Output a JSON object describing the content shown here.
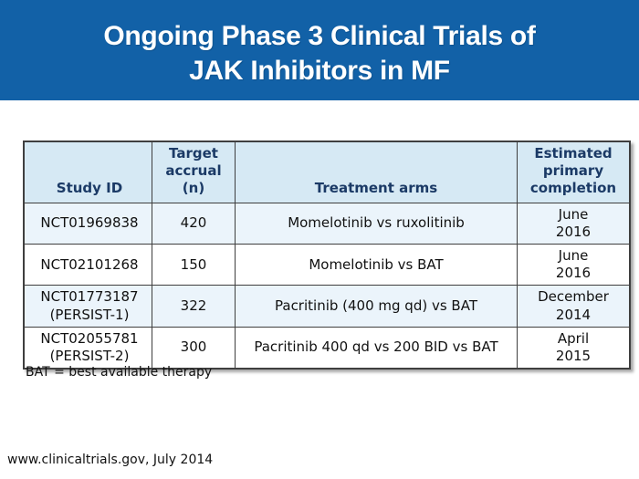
{
  "title": {
    "line1": "Ongoing Phase 3 Clinical Trials of",
    "line2": "JAK Inhibitors in MF"
  },
  "table": {
    "columns": [
      "Study ID",
      "Target accrual\n(n)",
      "Treatment arms",
      "Estimated\nprimary\ncompletion"
    ],
    "rows": [
      {
        "study_id": "NCT01969838",
        "accrual": "420",
        "arms": "Momelotinib vs ruxolitinib",
        "completion": "June\n2016"
      },
      {
        "study_id": "NCT02101268",
        "accrual": "150",
        "arms": "Momelotinib vs BAT",
        "completion": "June\n2016"
      },
      {
        "study_id": "NCT01773187\n(PERSIST-1)",
        "accrual": "322",
        "arms": "Pacritinib (400 mg qd) vs BAT",
        "completion": "December\n2014"
      },
      {
        "study_id": "NCT02055781\n(PERSIST-2)",
        "accrual": "300",
        "arms": "Pacritinib 400 qd vs 200 BID vs BAT",
        "completion": "April\n2015"
      }
    ]
  },
  "footnote": "BAT = best available therapy",
  "footer": "www.clinicaltrials.gov, July 2014",
  "colors": {
    "title_band_bg": "#1261A7",
    "title_text": "#FFFFFF",
    "table_header_bg": "#D6E9F4",
    "table_header_text": "#1B3A66",
    "row_alt_bg": "#EBF4FB",
    "table_border": "#3F3F3F",
    "body_text": "#111111"
  }
}
